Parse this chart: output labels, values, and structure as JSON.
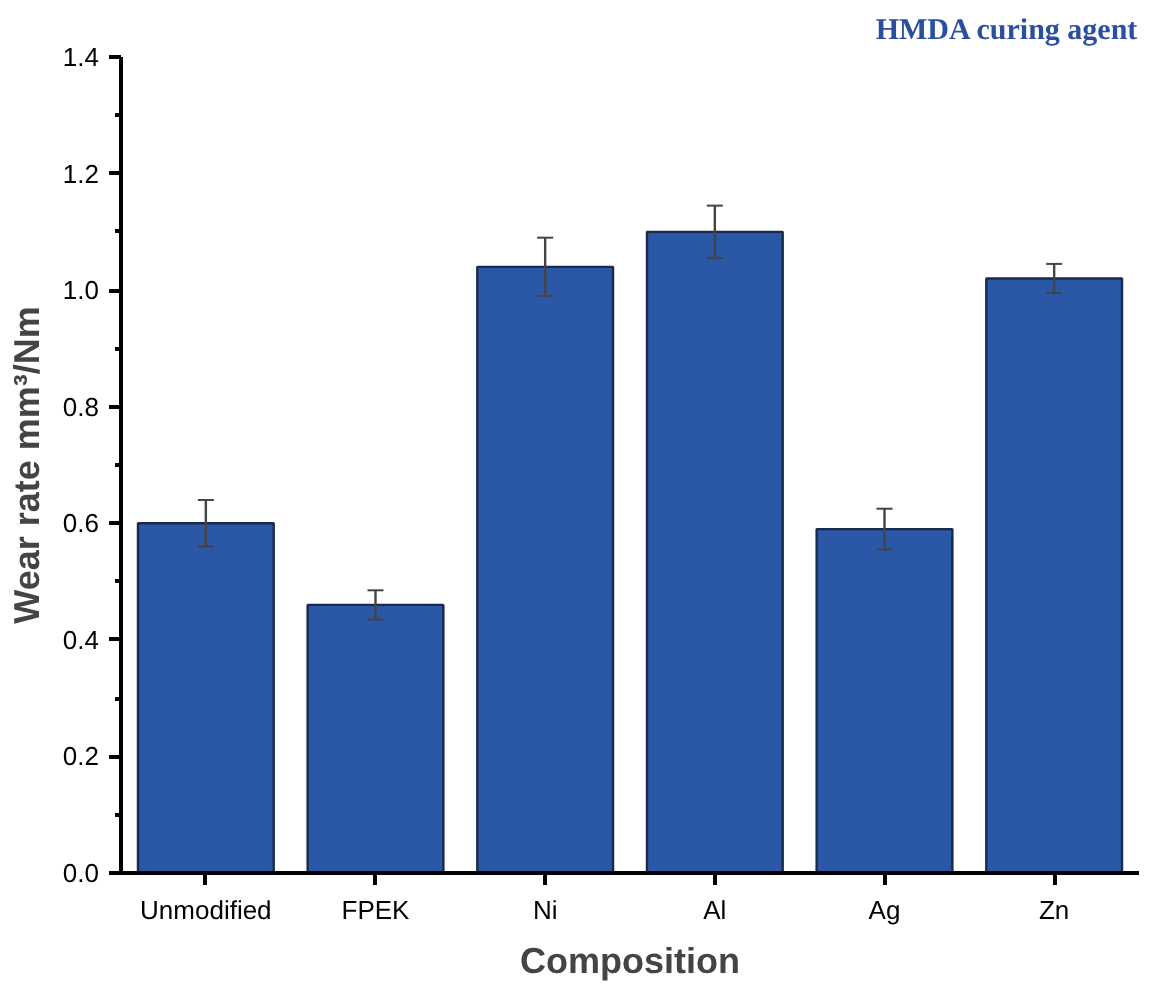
{
  "chart_data": {
    "type": "bar",
    "xlabel": "Composition",
    "ylabel": "Wear rate mm³/Nm",
    "annotations": [
      "HMDA curing agent"
    ],
    "categories": [
      "Unmodified",
      "FPEK",
      "Ni",
      "Al",
      "Ag",
      "Zn"
    ],
    "values": [
      0.6,
      0.46,
      1.04,
      1.1,
      0.59,
      1.02
    ],
    "errors": [
      0.04,
      0.025,
      0.05,
      0.045,
      0.035,
      0.025
    ],
    "color": "#2a58a6",
    "ylim": [
      0,
      1.4
    ],
    "yticks": [
      {
        "value": 0,
        "label": "0.0"
      },
      0.2,
      0.4,
      0.6,
      0.8,
      {
        "value": 1,
        "label": "1.0"
      },
      1.2,
      1.4
    ],
    "grid": false
  }
}
